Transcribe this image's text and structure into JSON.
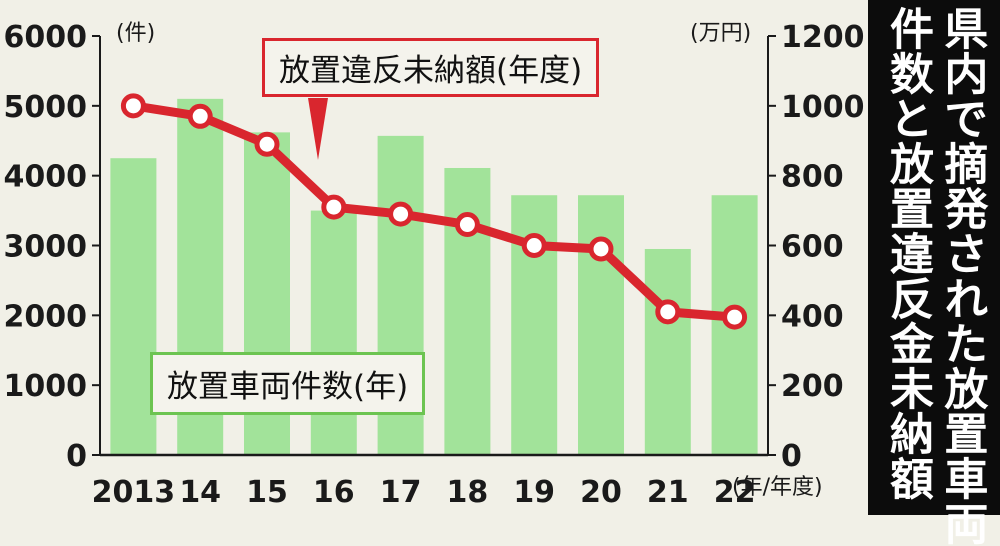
{
  "title_lines": [
    "県内で摘発された放置車両",
    "件数と放置違反金未納額"
  ],
  "chart_data": {
    "type": "bar",
    "categories": [
      "2013",
      "14",
      "15",
      "16",
      "17",
      "18",
      "19",
      "20",
      "21",
      "22"
    ],
    "x_unit": "(年/年度)",
    "series": [
      {
        "name": "放置車両件数(年)",
        "type": "bar",
        "axis": "left",
        "values": [
          4250,
          5100,
          4620,
          3500,
          4570,
          4110,
          3720,
          3720,
          2950,
          3720
        ]
      },
      {
        "name": "放置違反未納額(年度)",
        "type": "line",
        "axis": "right",
        "values": [
          1000,
          970,
          890,
          710,
          690,
          660,
          600,
          590,
          410,
          395
        ]
      }
    ],
    "left_axis": {
      "unit": "(件)",
      "ylim": [
        0,
        6000
      ],
      "ticks": [
        0,
        1000,
        2000,
        3000,
        4000,
        5000,
        6000
      ]
    },
    "right_axis": {
      "unit": "(万円)",
      "ylim": [
        0,
        1200
      ],
      "ticks": [
        0,
        200,
        400,
        600,
        800,
        1000,
        1200
      ]
    },
    "colors": {
      "bar": "#a2e39a",
      "line": "#d9262e",
      "background": "#f1f0e7",
      "title_bg": "#0c0c0c"
    }
  }
}
